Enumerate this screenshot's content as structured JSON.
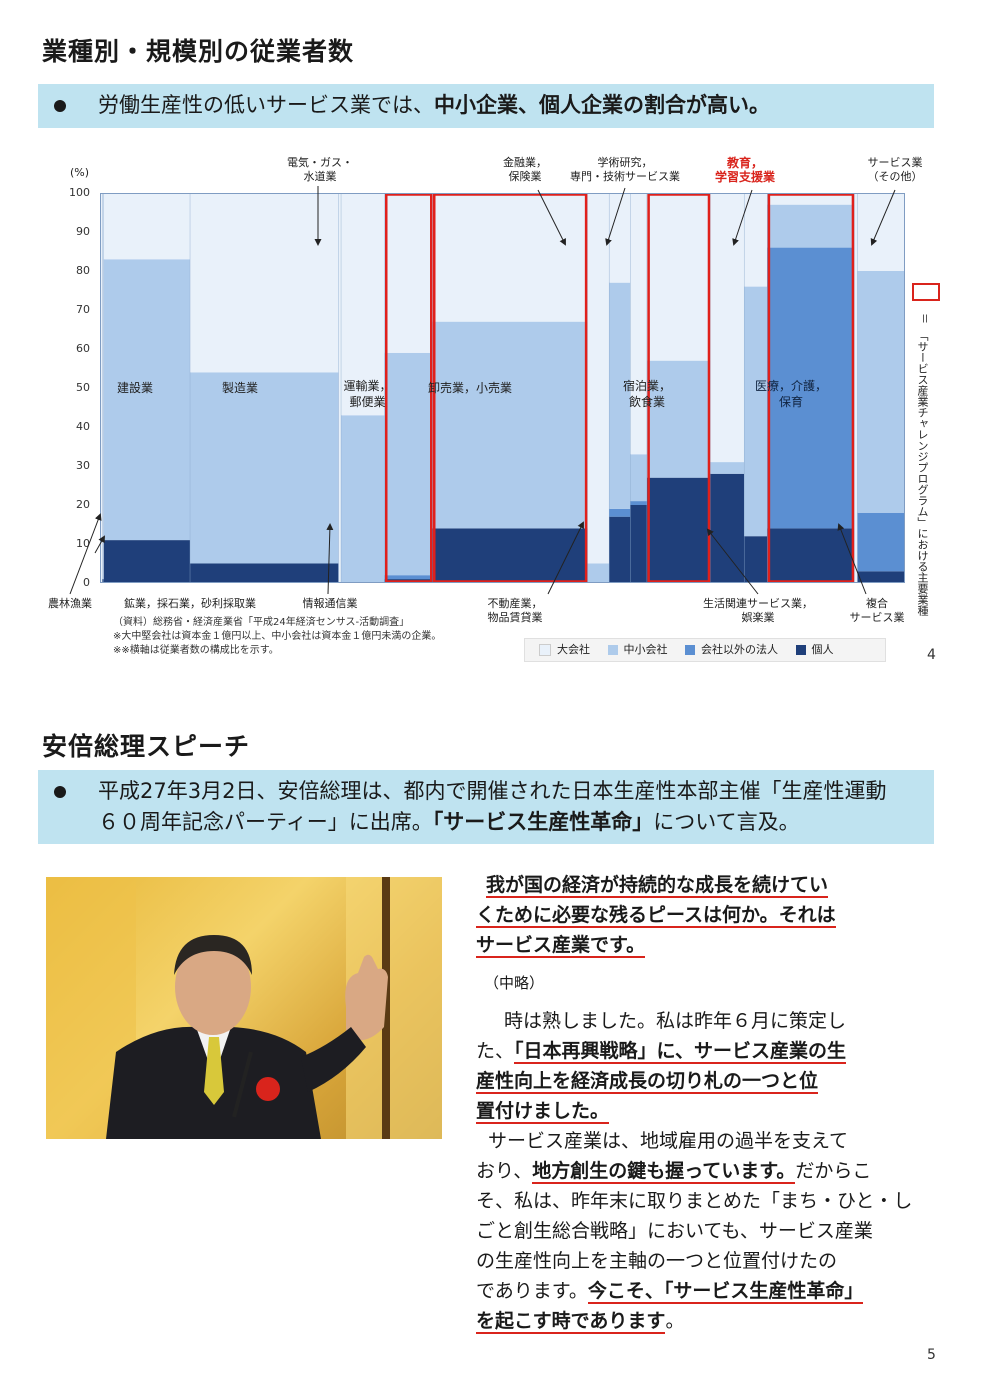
{
  "section1": {
    "title": "業種別・規模別の従業者数",
    "banner_prefix": "労働生産性の低いサービス業では、",
    "banner_bold": "中小企業、個人企業の割合が高い。"
  },
  "chart_data": {
    "type": "bar",
    "subtype": "marimekko-stacked",
    "ylabel": "(%)",
    "ylim": [
      0,
      100
    ],
    "yticks": [
      "100",
      "90",
      "80",
      "70",
      "60",
      "50",
      "40",
      "30",
      "20",
      "10",
      "0"
    ],
    "legend": [
      "大会社",
      "中小会社",
      "会社以外の法人",
      "個人"
    ],
    "colors": {
      "large": "#e9f1fa",
      "sme": "#aecbeb",
      "nonprofit": "#5b8fd2",
      "individual": "#1f3f7a",
      "highlight": "#e0201b"
    },
    "categories": [
      "農林漁業",
      "鉱業，採石業，砂利採取業",
      "建設業",
      "製造業",
      "電気・ガス・水道業",
      "情報通信業",
      "運輸業，郵便業",
      "卸売業，小売業",
      "金融業，保険業",
      "不動産業，物品賃貸業",
      "学術研究，専門・技術サービス業",
      "宿泊業，飲食業",
      "生活関連サービス業，娯楽業",
      "教育，学習支援業",
      "医療，介護，保育",
      "複合サービス業",
      "サービス業（その他）"
    ],
    "widths": [
      0.4,
      0.2,
      13.5,
      23.2,
      0.4,
      6.8,
      7.5,
      24.2,
      3.4,
      3.3,
      2.6,
      9.9,
      5.3,
      3.6,
      13.6,
      0.5,
      7.4
    ],
    "series": [
      {
        "name": "個人",
        "values": [
          0,
          1,
          11,
          5,
          0,
          0,
          1,
          14,
          0,
          17,
          20,
          27,
          28,
          12,
          14,
          0,
          3
        ]
      },
      {
        "name": "会社以外の法人",
        "values": [
          0,
          0,
          0,
          0,
          0,
          0,
          1,
          0,
          0,
          2,
          1,
          0,
          0,
          0,
          72,
          0,
          15
        ]
      },
      {
        "name": "中小会社",
        "values": [
          0,
          0,
          72,
          49,
          0,
          43,
          57,
          53,
          5,
          58,
          12,
          30,
          3,
          64,
          11,
          0,
          62
        ]
      },
      {
        "name": "大会社",
        "values": [
          100,
          99,
          17,
          46,
          100,
          57,
          41,
          33,
          95,
          23,
          67,
          43,
          69,
          24,
          3,
          100,
          20
        ]
      }
    ]
  },
  "labels": {
    "construction": "建設業",
    "manufacturing": "製造業",
    "transport_1": "運輸業，",
    "transport_2": "郵便業",
    "wholesale": "卸売業，小売業",
    "lodging_1": "宿泊業，",
    "lodging_2": "飲食業",
    "medical_1": "医療，介護，",
    "medical_2": "保育",
    "elec_1": "電気・ガス・",
    "elec_2": "水道業",
    "finance_1": "金融業，",
    "finance_2": "保険業",
    "academic_1": "学術研究，",
    "academic_2": "専門・技術サービス業",
    "education_1": "教育，",
    "education_2": "学習支援業",
    "service_other_1": "サービス業",
    "service_other_2": "（その他）",
    "agri": "農林漁業",
    "mining": "鉱業，採石業，砂利採取業",
    "ict": "情報通信業",
    "realestate_1": "不動産業，",
    "realestate_2": "物品賃貸業",
    "living_1": "生活関連サービス業，",
    "living_2": "娯楽業",
    "compound_1": "複合",
    "compound_2": "サービス業"
  },
  "source": {
    "line1": "（資料）総務省・経済産業省「平成24年経済センサス-活動調査」",
    "line2": "※大中堅会社は資本金１億円以上、中小会社は資本金１億円未満の企業。",
    "line3": "※※横軸は従業者数の構成比を示す。"
  },
  "side_note": {
    "eq": "＝",
    "text": "「サービス産業チャレンジプログラム」における主要業種"
  },
  "page_num_1": "4",
  "section2": {
    "title": "安倍総理スピーチ",
    "banner_line1": "平成27年3月2日、安倍総理は、都内で開催された日本生産性本部主催「生産性運動",
    "banner_line2_a": "６０周年記念パーティー」に出席。",
    "banner_line2_b": "「サービス生産性革命」",
    "banner_line2_c": "について言及。"
  },
  "speech": {
    "p1_l1": "我が国の経済が持続的な成長を続けてい",
    "p1_l2": "くために必要な残るピースは何か。それは",
    "p1_l3": "サービス産業です。",
    "omit": "（中略）",
    "p2_l1": "時は熟しました。私は昨年６月に策定し",
    "p2_l2a": "た、",
    "p2_l2b": "「日本再興戦略」に、サービス産業の生",
    "p2_l3": "産性向上を経済成長の切り札の一つと位",
    "p2_l4": "置付けました。",
    "p3_l1": "サービス産業は、地域雇用の過半を支えて",
    "p3_l2a": "おり、",
    "p3_l2b": "地方創生の鍵も握っています。",
    "p3_l2c": "だからこ",
    "p3_l3": "そ、私は、昨年末に取りまとめた「まち・ひと・し",
    "p3_l4": "ごと創生総合戦略」においても、サービス産業",
    "p3_l5": "の生産性向上を主軸の一つと位置付けたの",
    "p3_l6a": "であります。",
    "p3_l6b": "今こそ、「サービス生産性革命」",
    "p3_l7a": "を起こす時であります",
    "p3_l7b": "。"
  },
  "page_num_2": "5"
}
